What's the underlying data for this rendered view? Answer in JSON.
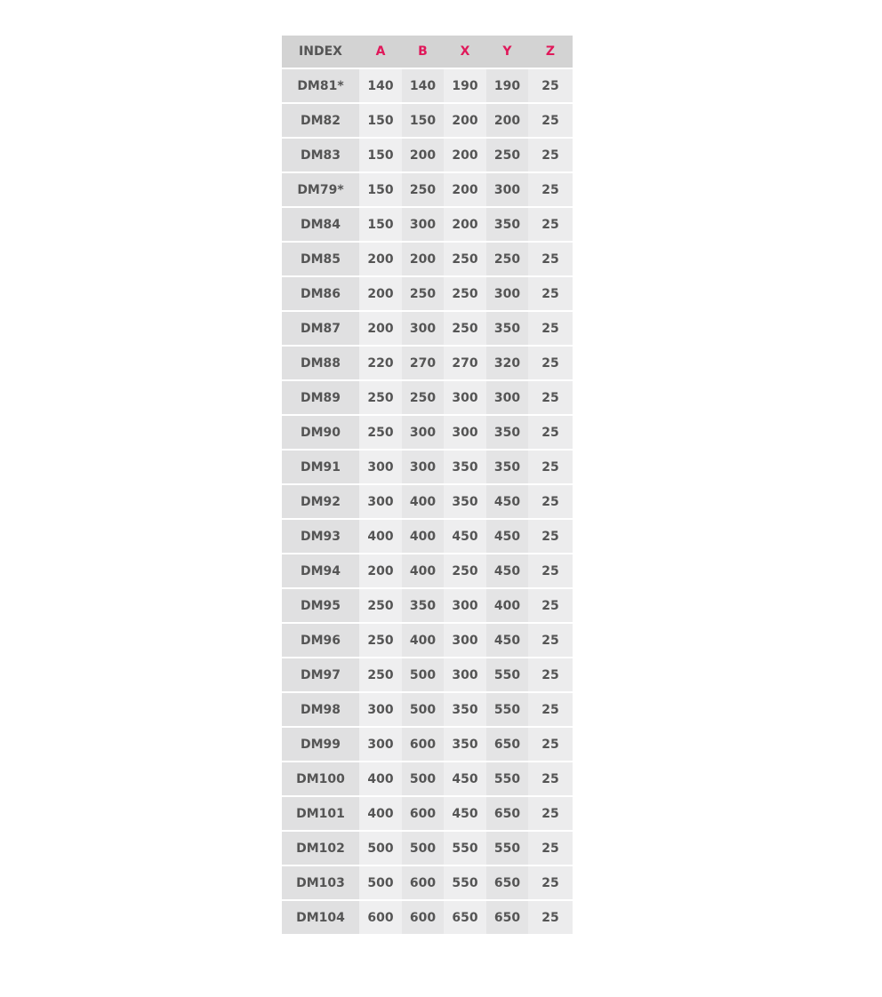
{
  "table": {
    "headers": [
      "INDEX",
      "A",
      "B",
      "X",
      "Y",
      "Z"
    ],
    "accent_color": "#e0185a",
    "rows": [
      [
        "DM81*",
        "140",
        "140",
        "190",
        "190",
        "25"
      ],
      [
        "DM82",
        "150",
        "150",
        "200",
        "200",
        "25"
      ],
      [
        "DM83",
        "150",
        "200",
        "200",
        "250",
        "25"
      ],
      [
        "DM79*",
        "150",
        "250",
        "200",
        "300",
        "25"
      ],
      [
        "DM84",
        "150",
        "300",
        "200",
        "350",
        "25"
      ],
      [
        "DM85",
        "200",
        "200",
        "250",
        "250",
        "25"
      ],
      [
        "DM86",
        "200",
        "250",
        "250",
        "300",
        "25"
      ],
      [
        "DM87",
        "200",
        "300",
        "250",
        "350",
        "25"
      ],
      [
        "DM88",
        "220",
        "270",
        "270",
        "320",
        "25"
      ],
      [
        "DM89",
        "250",
        "250",
        "300",
        "300",
        "25"
      ],
      [
        "DM90",
        "250",
        "300",
        "300",
        "350",
        "25"
      ],
      [
        "DM91",
        "300",
        "300",
        "350",
        "350",
        "25"
      ],
      [
        "DM92",
        "300",
        "400",
        "350",
        "450",
        "25"
      ],
      [
        "DM93",
        "400",
        "400",
        "450",
        "450",
        "25"
      ],
      [
        "DM94",
        "200",
        "400",
        "250",
        "450",
        "25"
      ],
      [
        "DM95",
        "250",
        "350",
        "300",
        "400",
        "25"
      ],
      [
        "DM96",
        "250",
        "400",
        "300",
        "450",
        "25"
      ],
      [
        "DM97",
        "250",
        "500",
        "300",
        "550",
        "25"
      ],
      [
        "DM98",
        "300",
        "500",
        "350",
        "550",
        "25"
      ],
      [
        "DM99",
        "300",
        "600",
        "350",
        "650",
        "25"
      ],
      [
        "DM100",
        "400",
        "500",
        "450",
        "550",
        "25"
      ],
      [
        "DM101",
        "400",
        "600",
        "450",
        "650",
        "25"
      ],
      [
        "DM102",
        "500",
        "500",
        "550",
        "550",
        "25"
      ],
      [
        "DM103",
        "500",
        "600",
        "550",
        "650",
        "25"
      ],
      [
        "DM104",
        "600",
        "600",
        "650",
        "650",
        "25"
      ]
    ]
  }
}
